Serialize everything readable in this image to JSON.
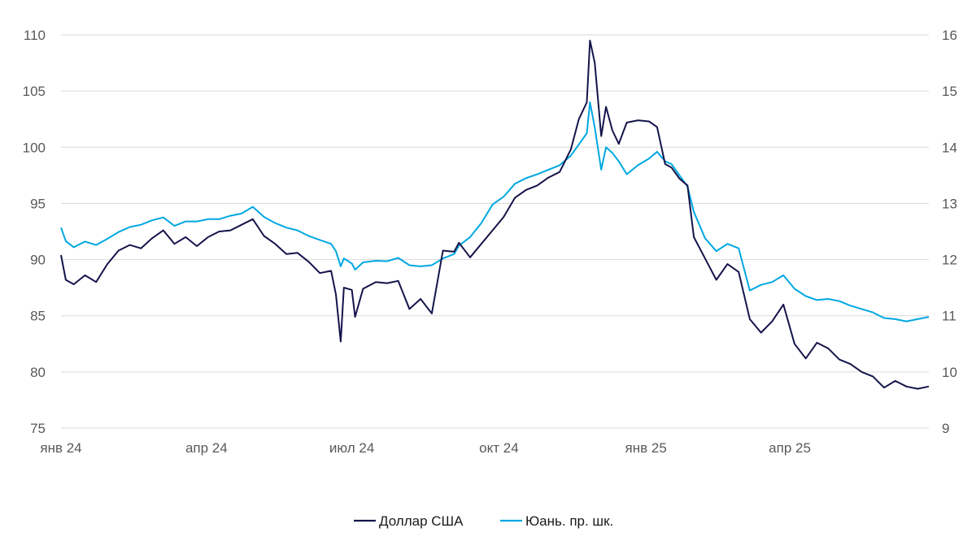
{
  "chart_data": {
    "type": "line",
    "title": "",
    "xlabel": "",
    "ylabel_left": "",
    "ylabel_right": "",
    "x_range": [
      "2024-01-01",
      "2025-06-27"
    ],
    "x_ticks": [
      {
        "date": "2024-01-01",
        "label": "янв 24"
      },
      {
        "date": "2024-04-01",
        "label": "апр 24"
      },
      {
        "date": "2024-07-01",
        "label": "июл 24"
      },
      {
        "date": "2024-10-01",
        "label": "окт 24"
      },
      {
        "date": "2025-01-01",
        "label": "янв 25"
      },
      {
        "date": "2025-04-01",
        "label": "апр 25"
      }
    ],
    "y_left": {
      "min": 75,
      "max": 110,
      "ticks": [
        75,
        80,
        85,
        90,
        95,
        100,
        105,
        110
      ]
    },
    "y_right": {
      "min": 9,
      "max": 16,
      "ticks": [
        9,
        10,
        11,
        12,
        13,
        14,
        15,
        16
      ]
    },
    "grid": true,
    "legend_position": "bottom",
    "colors": {
      "usd": "#14144b",
      "cny": "#00a8e1"
    },
    "series": [
      {
        "name": "Доллар США",
        "axis": "left",
        "points": [
          [
            "2024-01-01",
            90.4
          ],
          [
            "2024-01-04",
            88.2
          ],
          [
            "2024-01-09",
            87.8
          ],
          [
            "2024-01-16",
            88.6
          ],
          [
            "2024-01-23",
            88.0
          ],
          [
            "2024-01-30",
            89.6
          ],
          [
            "2024-02-06",
            90.8
          ],
          [
            "2024-02-13",
            91.3
          ],
          [
            "2024-02-20",
            91.0
          ],
          [
            "2024-02-27",
            91.9
          ],
          [
            "2024-03-05",
            92.6
          ],
          [
            "2024-03-12",
            91.4
          ],
          [
            "2024-03-19",
            92.0
          ],
          [
            "2024-03-26",
            91.2
          ],
          [
            "2024-04-02",
            92.0
          ],
          [
            "2024-04-09",
            92.5
          ],
          [
            "2024-04-16",
            92.6
          ],
          [
            "2024-04-23",
            93.1
          ],
          [
            "2024-04-30",
            93.6
          ],
          [
            "2024-05-07",
            92.1
          ],
          [
            "2024-05-14",
            91.4
          ],
          [
            "2024-05-21",
            90.5
          ],
          [
            "2024-05-28",
            90.6
          ],
          [
            "2024-06-04",
            89.8
          ],
          [
            "2024-06-11",
            88.8
          ],
          [
            "2024-06-18",
            89.0
          ],
          [
            "2024-06-21",
            86.9
          ],
          [
            "2024-06-24",
            82.7
          ],
          [
            "2024-06-26",
            87.5
          ],
          [
            "2024-07-01",
            87.3
          ],
          [
            "2024-07-03",
            84.9
          ],
          [
            "2024-07-08",
            87.4
          ],
          [
            "2024-07-16",
            88.0
          ],
          [
            "2024-07-23",
            87.9
          ],
          [
            "2024-07-30",
            88.1
          ],
          [
            "2024-08-06",
            85.6
          ],
          [
            "2024-08-13",
            86.5
          ],
          [
            "2024-08-20",
            85.2
          ],
          [
            "2024-08-27",
            90.8
          ],
          [
            "2024-09-03",
            90.7
          ],
          [
            "2024-09-06",
            91.5
          ],
          [
            "2024-09-13",
            90.2
          ],
          [
            "2024-09-20",
            91.4
          ],
          [
            "2024-09-27",
            92.6
          ],
          [
            "2024-10-04",
            93.8
          ],
          [
            "2024-10-11",
            95.5
          ],
          [
            "2024-10-18",
            96.2
          ],
          [
            "2024-10-25",
            96.6
          ],
          [
            "2024-11-01",
            97.3
          ],
          [
            "2024-11-08",
            97.8
          ],
          [
            "2024-11-15",
            99.8
          ],
          [
            "2024-11-20",
            102.5
          ],
          [
            "2024-11-25",
            104.0
          ],
          [
            "2024-11-27",
            109.5
          ],
          [
            "2024-11-30",
            107.5
          ],
          [
            "2024-12-04",
            101.0
          ],
          [
            "2024-12-07",
            103.6
          ],
          [
            "2024-12-11",
            101.5
          ],
          [
            "2024-12-15",
            100.3
          ],
          [
            "2024-12-20",
            102.2
          ],
          [
            "2024-12-27",
            102.4
          ],
          [
            "2025-01-03",
            102.3
          ],
          [
            "2025-01-08",
            101.8
          ],
          [
            "2025-01-13",
            98.5
          ],
          [
            "2025-01-17",
            98.2
          ],
          [
            "2025-01-22",
            97.2
          ],
          [
            "2025-01-27",
            96.6
          ],
          [
            "2025-01-31",
            92.0
          ],
          [
            "2025-02-07",
            90.1
          ],
          [
            "2025-02-14",
            88.2
          ],
          [
            "2025-02-21",
            89.6
          ],
          [
            "2025-02-28",
            88.9
          ],
          [
            "2025-03-07",
            84.7
          ],
          [
            "2025-03-14",
            83.5
          ],
          [
            "2025-03-21",
            84.5
          ],
          [
            "2025-03-28",
            86.0
          ],
          [
            "2025-04-04",
            82.5
          ],
          [
            "2025-04-11",
            81.2
          ],
          [
            "2025-04-18",
            82.6
          ],
          [
            "2025-04-25",
            82.1
          ],
          [
            "2025-05-02",
            81.1
          ],
          [
            "2025-05-09",
            80.7
          ],
          [
            "2025-05-16",
            80.0
          ],
          [
            "2025-05-23",
            79.6
          ],
          [
            "2025-05-30",
            78.6
          ],
          [
            "2025-06-06",
            79.2
          ],
          [
            "2025-06-13",
            78.7
          ],
          [
            "2025-06-20",
            78.5
          ],
          [
            "2025-06-27",
            78.7
          ]
        ]
      },
      {
        "name": "Юань. пр. шк.",
        "axis": "right",
        "points": [
          [
            "2024-01-01",
            12.57
          ],
          [
            "2024-01-04",
            12.33
          ],
          [
            "2024-01-09",
            12.22
          ],
          [
            "2024-01-16",
            12.32
          ],
          [
            "2024-01-23",
            12.26
          ],
          [
            "2024-01-30",
            12.37
          ],
          [
            "2024-02-06",
            12.49
          ],
          [
            "2024-02-13",
            12.58
          ],
          [
            "2024-02-20",
            12.62
          ],
          [
            "2024-02-27",
            12.7
          ],
          [
            "2024-03-05",
            12.75
          ],
          [
            "2024-03-12",
            12.6
          ],
          [
            "2024-03-19",
            12.68
          ],
          [
            "2024-03-26",
            12.68
          ],
          [
            "2024-04-02",
            12.72
          ],
          [
            "2024-04-09",
            12.72
          ],
          [
            "2024-04-16",
            12.78
          ],
          [
            "2024-04-23",
            12.82
          ],
          [
            "2024-04-30",
            12.94
          ],
          [
            "2024-05-07",
            12.76
          ],
          [
            "2024-05-14",
            12.65
          ],
          [
            "2024-05-21",
            12.57
          ],
          [
            "2024-05-28",
            12.52
          ],
          [
            "2024-06-04",
            12.42
          ],
          [
            "2024-06-11",
            12.35
          ],
          [
            "2024-06-18",
            12.28
          ],
          [
            "2024-06-21",
            12.15
          ],
          [
            "2024-06-24",
            11.88
          ],
          [
            "2024-06-26",
            12.02
          ],
          [
            "2024-07-01",
            11.93
          ],
          [
            "2024-07-03",
            11.82
          ],
          [
            "2024-07-08",
            11.95
          ],
          [
            "2024-07-16",
            11.98
          ],
          [
            "2024-07-23",
            11.97
          ],
          [
            "2024-07-30",
            12.03
          ],
          [
            "2024-08-06",
            11.9
          ],
          [
            "2024-08-13",
            11.88
          ],
          [
            "2024-08-20",
            11.9
          ],
          [
            "2024-08-27",
            12.02
          ],
          [
            "2024-09-03",
            12.1
          ],
          [
            "2024-09-06",
            12.25
          ],
          [
            "2024-09-13",
            12.4
          ],
          [
            "2024-09-20",
            12.65
          ],
          [
            "2024-09-27",
            12.98
          ],
          [
            "2024-10-04",
            13.12
          ],
          [
            "2024-10-11",
            13.35
          ],
          [
            "2024-10-18",
            13.45
          ],
          [
            "2024-10-25",
            13.52
          ],
          [
            "2024-11-01",
            13.6
          ],
          [
            "2024-11-08",
            13.68
          ],
          [
            "2024-11-15",
            13.85
          ],
          [
            "2024-11-20",
            14.05
          ],
          [
            "2024-11-25",
            14.25
          ],
          [
            "2024-11-27",
            14.8
          ],
          [
            "2024-11-30",
            14.35
          ],
          [
            "2024-12-04",
            13.6
          ],
          [
            "2024-12-07",
            14.0
          ],
          [
            "2024-12-11",
            13.9
          ],
          [
            "2024-12-15",
            13.75
          ],
          [
            "2024-12-20",
            13.52
          ],
          [
            "2024-12-27",
            13.68
          ],
          [
            "2025-01-03",
            13.8
          ],
          [
            "2025-01-08",
            13.92
          ],
          [
            "2025-01-13",
            13.75
          ],
          [
            "2025-01-17",
            13.7
          ],
          [
            "2025-01-22",
            13.5
          ],
          [
            "2025-01-27",
            13.3
          ],
          [
            "2025-01-31",
            12.85
          ],
          [
            "2025-02-07",
            12.38
          ],
          [
            "2025-02-14",
            12.15
          ],
          [
            "2025-02-21",
            12.28
          ],
          [
            "2025-02-28",
            12.2
          ],
          [
            "2025-03-07",
            11.45
          ],
          [
            "2025-03-14",
            11.55
          ],
          [
            "2025-03-21",
            11.6
          ],
          [
            "2025-03-28",
            11.72
          ],
          [
            "2025-04-04",
            11.48
          ],
          [
            "2025-04-11",
            11.35
          ],
          [
            "2025-04-18",
            11.28
          ],
          [
            "2025-04-25",
            11.3
          ],
          [
            "2025-05-02",
            11.26
          ],
          [
            "2025-05-09",
            11.18
          ],
          [
            "2025-05-16",
            11.12
          ],
          [
            "2025-05-23",
            11.06
          ],
          [
            "2025-05-30",
            10.96
          ],
          [
            "2025-06-06",
            10.94
          ],
          [
            "2025-06-13",
            10.9
          ],
          [
            "2025-06-20",
            10.94
          ],
          [
            "2025-06-27",
            10.98
          ]
        ]
      }
    ]
  }
}
